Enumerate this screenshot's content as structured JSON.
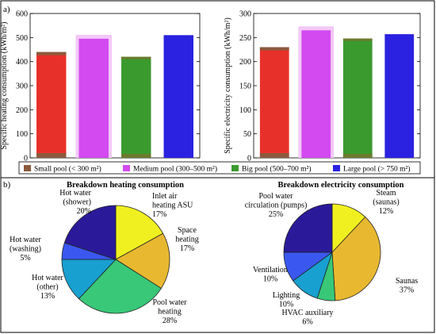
{
  "panel_labels": {
    "a": "a)",
    "b": "b)"
  },
  "legend": {
    "items": [
      {
        "key": "small",
        "label": "Small pool (< 300 m²)"
      },
      {
        "key": "medium",
        "label": "Medium pool (300–500 m²)"
      },
      {
        "key": "big",
        "label": "Big pool (500–700 m²)"
      },
      {
        "key": "large",
        "label": "Large pool (> 750 m²)"
      }
    ]
  },
  "colors": {
    "small": "#e8302a",
    "small_base": "#8b5a3c",
    "medium": "#d24af0",
    "medium_halo": "#f2c8f6",
    "big": "#3a9a2e",
    "big_top": "#6b7a2e",
    "large": "#2a22e0",
    "pie": [
      "#f0f020",
      "#e8b830",
      "#38c878",
      "#18a0d0",
      "#3a58f0",
      "#2a1a9a"
    ]
  },
  "chart_data": [
    {
      "type": "bar",
      "categories": [
        "Small pool (< 300 m²)",
        "Medium pool (300–500 m²)",
        "Big pool (500–700 m²)",
        "Large pool (> 750 m²)"
      ],
      "series_keys": [
        "small",
        "medium",
        "big",
        "large"
      ],
      "values": [
        440,
        495,
        420,
        510
      ],
      "ylabel": "Specific heating consumption (kWh/m²)",
      "ylim": [
        0,
        600
      ],
      "yticks": [
        0,
        100,
        200,
        300,
        400,
        500,
        600
      ],
      "grid": false
    },
    {
      "type": "bar",
      "categories": [
        "Small pool (< 300 m²)",
        "Medium pool (300–500 m²)",
        "Big pool (500–700 m²)",
        "Large pool (> 750 m²)"
      ],
      "series_keys": [
        "small",
        "medium",
        "big",
        "large"
      ],
      "values": [
        230,
        265,
        248,
        257
      ],
      "ylabel": "Specific electricity consumption (kWh/m²)",
      "ylim": [
        0,
        300
      ],
      "yticks": [
        0,
        50,
        100,
        150,
        200,
        250,
        300
      ],
      "grid": false
    },
    {
      "type": "pie",
      "title": "Breakdown heating consumption",
      "slices": [
        {
          "label": "Inlet air heating ASU",
          "value": 17,
          "pct": "17%"
        },
        {
          "label": "Space heating",
          "value": 17,
          "pct": "17%"
        },
        {
          "label": "Pool water heating",
          "value": 28,
          "pct": "28%"
        },
        {
          "label": "Hot water (other)",
          "value": 13,
          "pct": "13%"
        },
        {
          "label": "Hot water (washing)",
          "value": 5,
          "pct": "5%"
        },
        {
          "label": "Hot water (shower)",
          "value": 20,
          "pct": "20%"
        }
      ]
    },
    {
      "type": "pie",
      "title": "Breakdown electricity consumption",
      "slices": [
        {
          "label": "Steam (saunas)",
          "value": 12,
          "pct": "12%"
        },
        {
          "label": "Saunas",
          "value": 37,
          "pct": "37%"
        },
        {
          "label": "HVAC auxiliary",
          "value": 6,
          "pct": "6%"
        },
        {
          "label": "Lighting",
          "value": 10,
          "pct": "10%"
        },
        {
          "label": "Ventilation",
          "value": 10,
          "pct": "10%"
        },
        {
          "label": "Pool water circulation (pumps)",
          "value": 25,
          "pct": "25%"
        }
      ]
    }
  ]
}
